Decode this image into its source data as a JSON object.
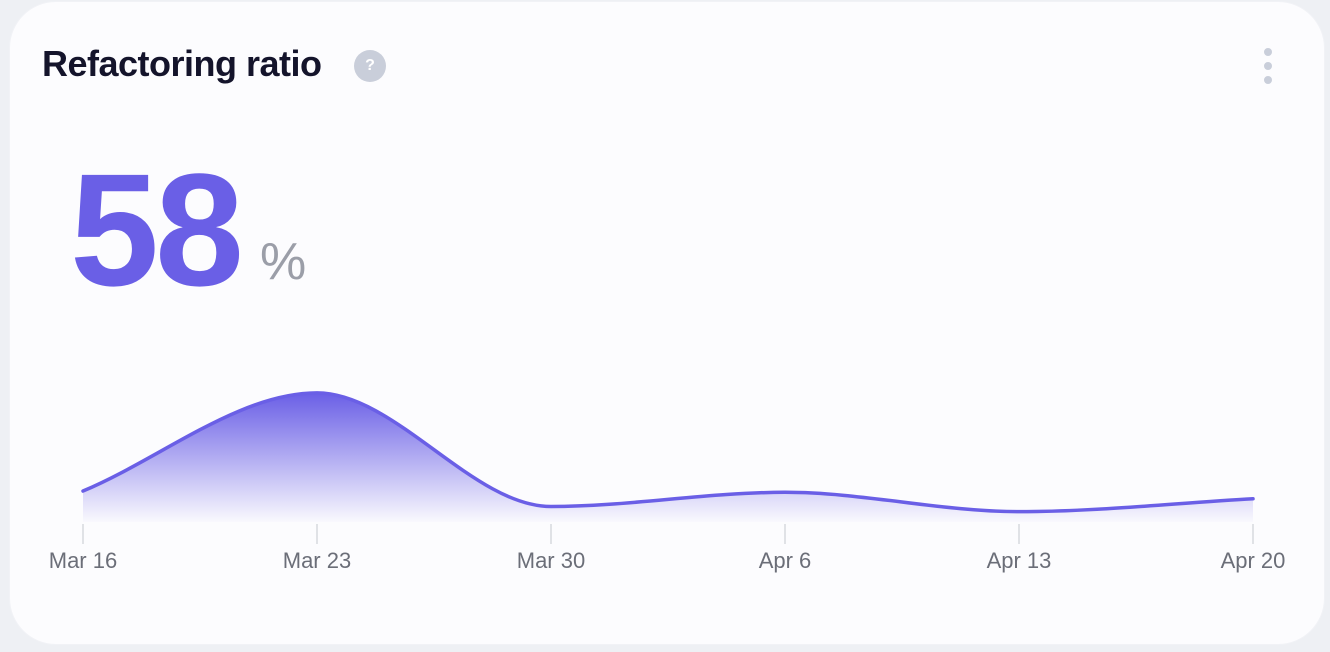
{
  "widget": {
    "title": "Refactoring ratio",
    "help_icon": "question-mark-icon",
    "help_glyph": "?",
    "menu_icon": "vertical-ellipsis-icon",
    "value": "58",
    "unit": "%",
    "accent_color": "#6a5fe6",
    "title_color": "#14142b"
  },
  "chart_data": {
    "type": "area",
    "title": "",
    "xlabel": "",
    "ylabel": "",
    "grid": false,
    "legend": "none",
    "x_tick_labels": [
      "Mar 16",
      "Mar 23",
      "Mar 30",
      "Apr 6",
      "Apr 13",
      "Apr 20"
    ],
    "x": [
      "Mar 16",
      "Mar 23",
      "Mar 30",
      "Apr 6",
      "Apr 13",
      "Apr 20"
    ],
    "series": [
      {
        "values": [
          24,
          100,
          12,
          23,
          8,
          18
        ],
        "color": "#6a5fe6"
      }
    ],
    "ylim": [
      0,
      110
    ],
    "y_axis_visible": false
  }
}
